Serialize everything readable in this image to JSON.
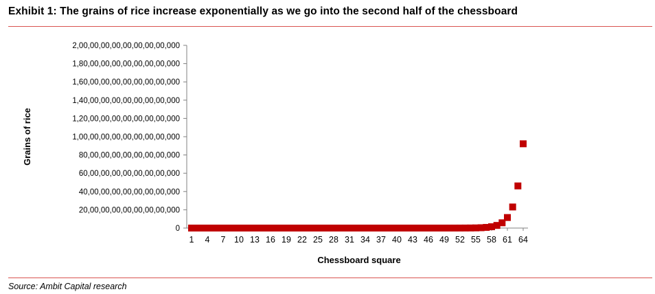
{
  "header": {
    "title": "Exhibit 1: The grains of rice increase exponentially as we go into the second half of the chessboard"
  },
  "footer": {
    "source": "Source: Ambit Capital research"
  },
  "colors": {
    "accent_rule": "#d9534f",
    "marker": "#c00000",
    "axis": "#808080"
  },
  "chart_data": {
    "type": "scatter",
    "marker": "square",
    "xlabel": "Chessboard square",
    "ylabel": "Grains of rice",
    "xlim": [
      1,
      64
    ],
    "ylim": [
      0,
      20000000000000000000
    ],
    "x_ticks": [
      1,
      4,
      7,
      10,
      13,
      16,
      19,
      22,
      25,
      28,
      31,
      34,
      37,
      40,
      43,
      46,
      49,
      52,
      55,
      58,
      61,
      64
    ],
    "y_ticks": [
      0,
      2000000000000000000,
      4000000000000000000,
      6000000000000000000,
      8000000000000000000,
      10000000000000000000,
      12000000000000000000,
      14000000000000000000,
      16000000000000000000,
      18000000000000000000,
      20000000000000000000
    ],
    "y_tick_labels": [
      "0",
      "20,00,00,00,00,00,00,00,000",
      "40,00,00,00,00,00,00,00,000",
      "60,00,00,00,00,00,00,00,000",
      "80,00,00,00,00,00,00,00,000",
      "1,00,00,00,00,00,00,00,00,000",
      "1,20,00,00,00,00,00,00,00,000",
      "1,40,00,00,00,00,00,00,00,000",
      "1,60,00,00,00,00,00,00,00,000",
      "1,80,00,00,00,00,00,00,00,000",
      "2,00,00,00,00,00,00,00,00,000"
    ],
    "series": [
      {
        "formula": "grains = 2^(square - 1)",
        "x_from": 1,
        "x_to": 64
      }
    ],
    "grid": false,
    "legend": "none"
  }
}
